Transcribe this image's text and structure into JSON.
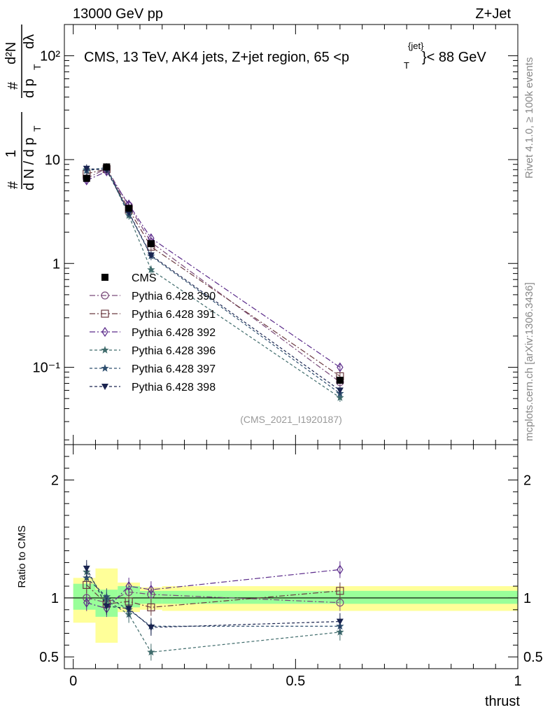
{
  "header": {
    "left": "13000 GeV pp",
    "right": "Z+Jet"
  },
  "side": {
    "rivet": "Rivet 4.1.0, ≥ 100k events",
    "mcplots": "mcplots.cern.ch [arXiv:1306.3436]"
  },
  "ylabel": {
    "hash": "#",
    "one": "1",
    "dN_dpt": "d N / d p",
    "T": "T",
    "d2N": "d²N",
    "dpt_dlambda": "d p",
    "dlambda": "dλ"
  },
  "chart_data": [
    {
      "type": "line",
      "title": "CMS, 13 TeV, AK4 jets, Z+jet region, 65 <p",
      "title_sup": "{jet}",
      "title_sub": "T",
      "title_end": "}< 88 GeV",
      "xlabel": "thrust",
      "yscale": "log",
      "ylim": [
        0.018,
        200
      ],
      "xlim": [
        -0.02,
        1.0
      ],
      "yticks": [
        0.1,
        1,
        10,
        100
      ],
      "ytick_labels": [
        "10⁻¹",
        "1",
        "10",
        "10²"
      ],
      "watermark": "(CMS_2021_I1920187)",
      "x": [
        0.03,
        0.075,
        0.125,
        0.175,
        0.6
      ],
      "reference": {
        "name": "CMS",
        "values": [
          6.6,
          8.5,
          3.4,
          1.55,
          0.075
        ]
      },
      "series": [
        {
          "name": "Pythia 6.428 390",
          "color": "#7a4a7a",
          "marker": "circle",
          "dash": "8,3,2,3",
          "values": [
            6.6,
            8.2,
            3.6,
            1.6,
            0.072
          ]
        },
        {
          "name": "Pythia 6.428 391",
          "color": "#6b3a40",
          "marker": "square",
          "dash": "8,3,2,3",
          "values": [
            7.3,
            8.1,
            3.3,
            1.45,
            0.082
          ]
        },
        {
          "name": "Pythia 6.428 392",
          "color": "#5a2a8a",
          "marker": "diamond",
          "dash": "8,3,2,3",
          "values": [
            6.3,
            7.7,
            3.7,
            1.75,
            0.1
          ]
        },
        {
          "name": "Pythia 6.428 396",
          "color": "#3f6b6b",
          "marker": "star",
          "dash": "4,3",
          "values": [
            8.0,
            8.3,
            2.9,
            0.87,
            0.051
          ]
        },
        {
          "name": "Pythia 6.428 397",
          "color": "#2f4f6f",
          "marker": "star",
          "dash": "4,3",
          "values": [
            7.8,
            8.4,
            3.05,
            1.18,
            0.056
          ]
        },
        {
          "name": "Pythia 6.428 398",
          "color": "#1a2450",
          "marker": "triangle-down",
          "dash": "4,3",
          "values": [
            8.2,
            7.9,
            3.1,
            1.2,
            0.06
          ]
        }
      ]
    },
    {
      "type": "line",
      "ylabel": "Ratio to CMS",
      "ylim": [
        0.4,
        2.3
      ],
      "yticks": [
        0.5,
        1,
        2
      ],
      "ytick_labels": [
        "0.5",
        "1",
        "2"
      ],
      "xticks": [
        0,
        0.5,
        1
      ],
      "xtick_labels": [
        "0",
        "0.5",
        "1"
      ],
      "bands": [
        {
          "x0": 0.0,
          "x1": 0.05,
          "inner": [
            0.9,
            1.12
          ],
          "outer": [
            0.79,
            1.17
          ]
        },
        {
          "x0": 0.05,
          "x1": 0.1,
          "inner": [
            0.84,
            1.07
          ],
          "outer": [
            0.62,
            1.25
          ]
        },
        {
          "x0": 0.1,
          "x1": 0.15,
          "inner": [
            0.92,
            1.1
          ],
          "outer": [
            0.88,
            1.13
          ]
        },
        {
          "x0": 0.15,
          "x1": 0.2,
          "inner": [
            0.95,
            1.06
          ],
          "outer": [
            0.9,
            1.09
          ]
        },
        {
          "x0": 0.2,
          "x1": 1.0,
          "inner": [
            0.95,
            1.06
          ],
          "outer": [
            0.89,
            1.1
          ]
        }
      ],
      "series": [
        {
          "name": "Pythia 6.428 390",
          "values": [
            1.0,
            0.96,
            1.05,
            1.03,
            0.96
          ]
        },
        {
          "name": "Pythia 6.428 391",
          "values": [
            1.11,
            0.95,
            0.97,
            0.92,
            1.06
          ]
        },
        {
          "name": "Pythia 6.428 392",
          "values": [
            0.96,
            0.91,
            1.1,
            1.07,
            1.24
          ]
        },
        {
          "name": "Pythia 6.428 396",
          "values": [
            1.22,
            0.98,
            0.86,
            0.54,
            0.71
          ]
        },
        {
          "name": "Pythia 6.428 397",
          "values": [
            1.17,
            1.01,
            0.9,
            0.76,
            0.76
          ]
        },
        {
          "name": "Pythia 6.428 398",
          "values": [
            1.25,
            0.93,
            0.91,
            0.75,
            0.8
          ]
        }
      ]
    }
  ]
}
